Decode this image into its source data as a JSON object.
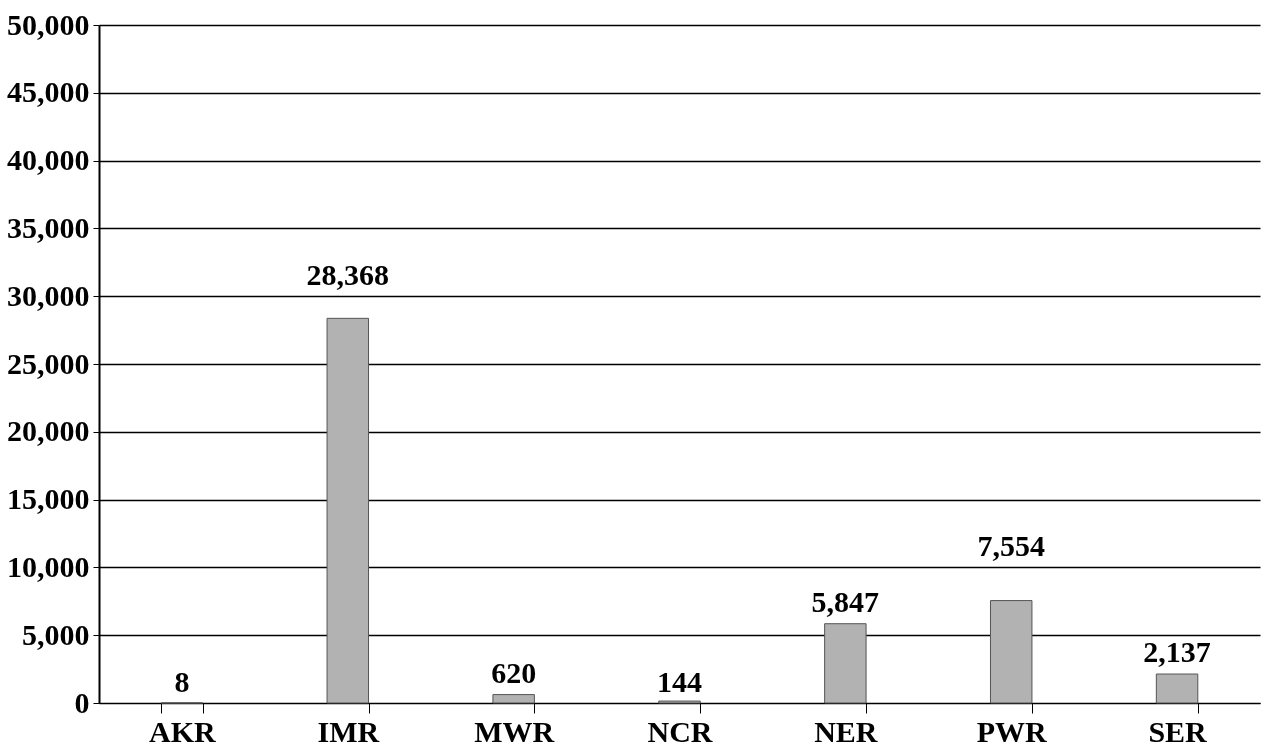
{
  "chart_data": {
    "type": "bar",
    "categories": [
      "AKR",
      "IMR",
      "MWR",
      "NCR",
      "NER",
      "PWR",
      "SER"
    ],
    "values": [
      8,
      28368,
      620,
      144,
      5847,
      7554,
      2137
    ],
    "value_labels": [
      "8",
      "28,368",
      "620",
      "144",
      "5,847",
      "7,554",
      "2,137"
    ],
    "color": "#b2b2b2",
    "ylim": [
      0,
      50000
    ],
    "yticks": [
      0,
      {
        "value": 5000,
        "label": "5,000"
      },
      {
        "value": 10000,
        "label": "10,000"
      },
      {
        "value": 15000,
        "label": "15,000"
      },
      {
        "value": 20000,
        "label": "20,000"
      },
      {
        "value": 25000,
        "label": "25,000"
      },
      {
        "value": 30000,
        "label": "30,000"
      },
      {
        "value": 35000,
        "label": "35,000"
      },
      {
        "value": 40000,
        "label": "40,000"
      },
      {
        "value": 45000,
        "label": "45,000"
      },
      {
        "value": 50000,
        "label": "50,000"
      }
    ],
    "grid": "y"
  }
}
